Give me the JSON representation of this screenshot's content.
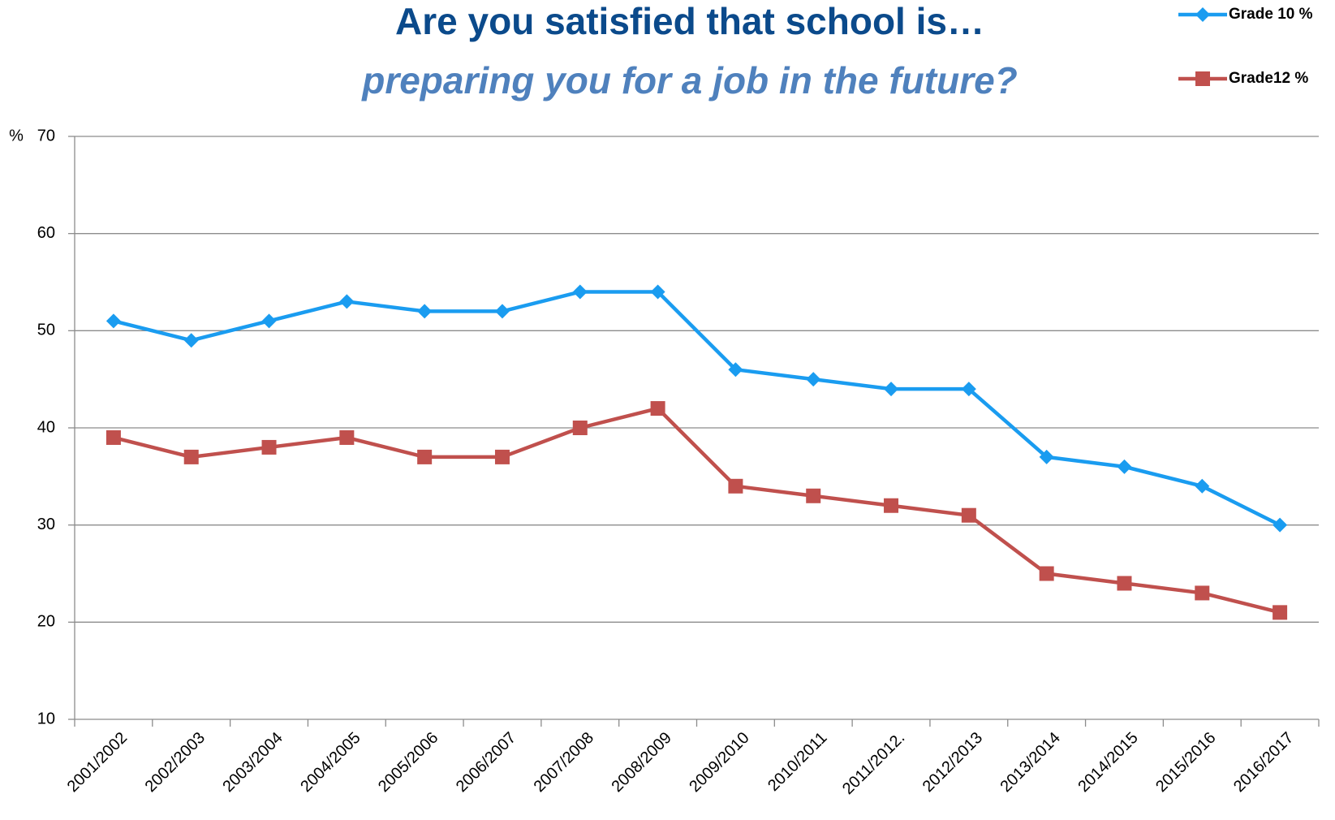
{
  "chart_data": {
    "type": "line",
    "title": "Are you satisfied that school is…",
    "subtitle": "preparing you for a job in the future?",
    "y_label": "%",
    "categories": [
      "2001/2002",
      "2002/2003",
      "2003/2004",
      "2004/2005",
      "2005/2006",
      "2006/2007",
      "2007/2008",
      "2008/2009",
      "2009/2010",
      "2010/2011",
      "2011/2012.",
      "2012/2013",
      "2013/2014",
      "2014/2015",
      "2015/2016",
      "2016/2017"
    ],
    "series": [
      {
        "name": "Grade 10 %",
        "color": "#1a9cf0",
        "marker": "diamond",
        "values": [
          51,
          49,
          51,
          53,
          52,
          52,
          54,
          54,
          46,
          45,
          44,
          44,
          37,
          36,
          34,
          30
        ]
      },
      {
        "name": "Grade12 %",
        "color": "#c0504d",
        "marker": "square",
        "values": [
          39,
          37,
          38,
          39,
          37,
          37,
          40,
          42,
          34,
          33,
          32,
          31,
          25,
          24,
          23,
          21
        ]
      }
    ],
    "ylim": [
      10,
      70
    ],
    "yticks": [
      10,
      20,
      30,
      40,
      50,
      60,
      70
    ],
    "grid": true,
    "legend": "top-right"
  }
}
